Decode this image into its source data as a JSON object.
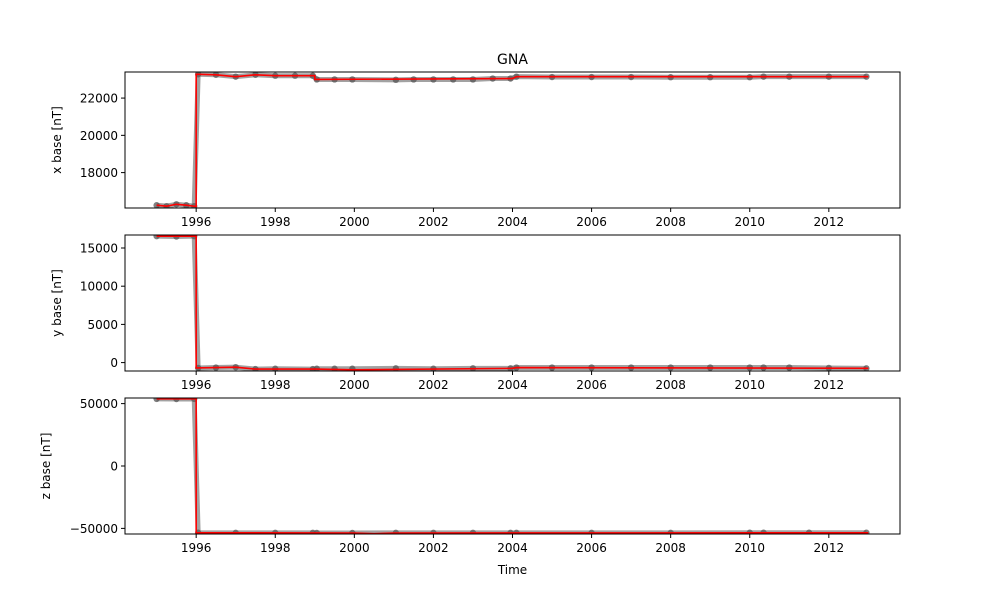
{
  "chart_data": {
    "type": "line",
    "title": "GNA",
    "xlabel": "Time",
    "xlim": [
      1994.2,
      2013.8
    ],
    "x_ticks": [
      "1996",
      "1998",
      "2000",
      "2002",
      "2004",
      "2006",
      "2008",
      "2010",
      "2012"
    ],
    "colors": {
      "points": "#555555",
      "fit": "#ff0000",
      "frame": "#000000"
    },
    "panels": [
      {
        "ylabel": "x base [nT]",
        "ylim": [
          16100,
          23400
        ],
        "y_ticks": [
          18000,
          20000,
          22000
        ],
        "y_tick_labels": [
          "18000",
          "20000",
          "22000"
        ],
        "points": [
          [
            1995.0,
            16250
          ],
          [
            1995.25,
            16200
          ],
          [
            1995.5,
            16300
          ],
          [
            1995.75,
            16250
          ],
          [
            1995.95,
            16200
          ],
          [
            1996.05,
            23280
          ],
          [
            1996.5,
            23250
          ],
          [
            1997.0,
            23150
          ],
          [
            1997.5,
            23250
          ],
          [
            1998.0,
            23200
          ],
          [
            1998.5,
            23200
          ],
          [
            1998.95,
            23200
          ],
          [
            1999.05,
            23000
          ],
          [
            1999.5,
            23000
          ],
          [
            1999.95,
            23000
          ],
          [
            2001.05,
            22980
          ],
          [
            2001.5,
            23000
          ],
          [
            2002.0,
            23000
          ],
          [
            2002.5,
            23000
          ],
          [
            2003.0,
            23000
          ],
          [
            2003.5,
            23050
          ],
          [
            2003.95,
            23050
          ],
          [
            2004.1,
            23150
          ],
          [
            2005.0,
            23130
          ],
          [
            2006.0,
            23130
          ],
          [
            2007.0,
            23130
          ],
          [
            2008.0,
            23120
          ],
          [
            2009.0,
            23120
          ],
          [
            2010.0,
            23120
          ],
          [
            2010.35,
            23150
          ],
          [
            2011.0,
            23150
          ],
          [
            2012.0,
            23150
          ],
          [
            2012.95,
            23150
          ]
        ],
        "fit": [
          [
            1995.0,
            16250
          ],
          [
            1995.25,
            16200
          ],
          [
            1995.5,
            16300
          ],
          [
            1995.75,
            16250
          ],
          [
            1996.0,
            16180
          ],
          [
            1996.0,
            23280
          ],
          [
            1996.5,
            23250
          ],
          [
            1997.0,
            23150
          ],
          [
            1997.5,
            23250
          ],
          [
            1998.0,
            23200
          ],
          [
            1999.0,
            23200
          ],
          [
            1999.0,
            23000
          ],
          [
            2004.0,
            23050
          ],
          [
            2004.1,
            23150
          ],
          [
            2013.0,
            23150
          ]
        ]
      },
      {
        "ylabel": "y base [nT]",
        "ylim": [
          -1100,
          16700
        ],
        "y_ticks": [
          0,
          5000,
          10000,
          15000
        ],
        "y_tick_labels": [
          "0",
          "5000",
          "10000",
          "15000"
        ],
        "points": [
          [
            1995.0,
            16550
          ],
          [
            1995.5,
            16500
          ],
          [
            1995.95,
            16550
          ],
          [
            1996.05,
            -700
          ],
          [
            1996.5,
            -650
          ],
          [
            1997.0,
            -600
          ],
          [
            1997.5,
            -850
          ],
          [
            1998.0,
            -800
          ],
          [
            1998.95,
            -850
          ],
          [
            1999.05,
            -800
          ],
          [
            1999.5,
            -800
          ],
          [
            1999.95,
            -800
          ],
          [
            2001.05,
            -750
          ],
          [
            2002.0,
            -800
          ],
          [
            2003.0,
            -750
          ],
          [
            2003.95,
            -750
          ],
          [
            2004.1,
            -650
          ],
          [
            2005.0,
            -650
          ],
          [
            2006.0,
            -650
          ],
          [
            2007.0,
            -650
          ],
          [
            2008.0,
            -650
          ],
          [
            2009.0,
            -650
          ],
          [
            2010.0,
            -650
          ],
          [
            2010.35,
            -650
          ],
          [
            2011.0,
            -650
          ],
          [
            2012.0,
            -700
          ],
          [
            2012.95,
            -750
          ]
        ],
        "fit": [
          [
            1995.0,
            16550
          ],
          [
            1996.0,
            16550
          ],
          [
            1996.0,
            -700
          ],
          [
            1997.0,
            -600
          ],
          [
            1997.5,
            -850
          ],
          [
            1999.0,
            -850
          ],
          [
            2000.0,
            -950
          ],
          [
            2004.0,
            -750
          ],
          [
            2004.1,
            -650
          ],
          [
            2013.0,
            -750
          ]
        ]
      },
      {
        "ylabel": "z base [nT]",
        "ylim": [
          -54500,
          54500
        ],
        "y_ticks": [
          -50000,
          0,
          50000
        ],
        "y_tick_labels": [
          "−50000",
          "0",
          "50000"
        ],
        "points": [
          [
            1995.0,
            53800
          ],
          [
            1995.5,
            53700
          ],
          [
            1995.95,
            53800
          ],
          [
            1996.05,
            -53500
          ],
          [
            1997.0,
            -53600
          ],
          [
            1998.0,
            -53600
          ],
          [
            1998.95,
            -53600
          ],
          [
            1999.05,
            -53700
          ],
          [
            1999.95,
            -53700
          ],
          [
            2001.05,
            -53600
          ],
          [
            2002.0,
            -53600
          ],
          [
            2003.0,
            -53600
          ],
          [
            2003.95,
            -53600
          ],
          [
            2004.1,
            -53600
          ],
          [
            2006.0,
            -53600
          ],
          [
            2008.0,
            -53600
          ],
          [
            2010.0,
            -53500
          ],
          [
            2010.35,
            -53500
          ],
          [
            2011.5,
            -53500
          ],
          [
            2012.95,
            -53500
          ]
        ],
        "fit": [
          [
            1995.0,
            53800
          ],
          [
            1996.0,
            53800
          ],
          [
            1996.0,
            -53500
          ],
          [
            2000.0,
            -53700
          ],
          [
            2000.5,
            -54200
          ],
          [
            2001.0,
            -53700
          ],
          [
            2013.0,
            -53500
          ]
        ]
      }
    ]
  }
}
